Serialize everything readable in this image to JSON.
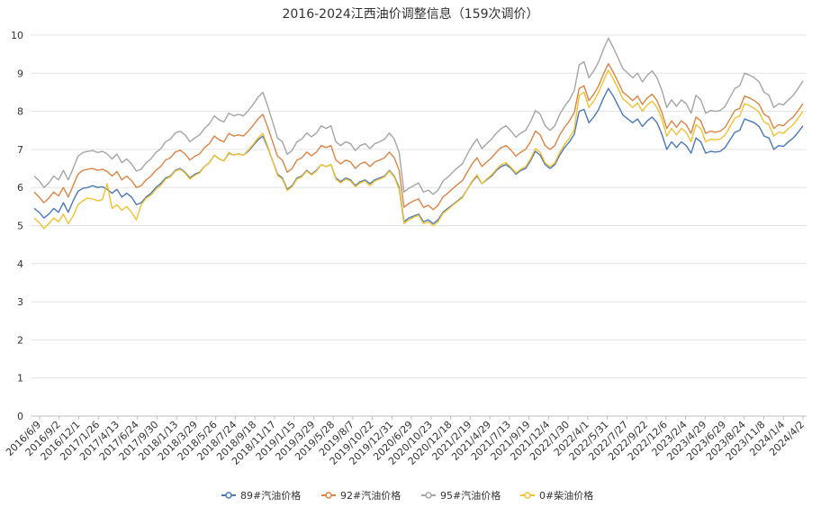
{
  "chart_data": {
    "type": "line",
    "title": "2016-2024江西油价调整信息（159次调价）",
    "xlabel": "",
    "ylabel": "",
    "ylim": [
      0,
      10
    ],
    "yticks": [
      0,
      1,
      2,
      3,
      4,
      5,
      6,
      7,
      8,
      9,
      10
    ],
    "grid": "horizontal",
    "legend_position": "bottom",
    "x_tick_labels": [
      "2016/6/9",
      "2016/9/2",
      "2016/12/1",
      "2017/1/26",
      "2017/4/13",
      "2017/6/24",
      "2017/9/30",
      "2018/1/13",
      "2018/3/29",
      "2018/5/26",
      "2018/7/24",
      "2018/9/18",
      "2018/11/17",
      "2019/1/15",
      "2019/3/29",
      "2019/5/28",
      "2019/8/7",
      "2019/10/22",
      "2019/12/31",
      "2020/6/29",
      "2020/10/23",
      "2020/12/18",
      "2021/2/19",
      "2021/4/29",
      "2021/7/13",
      "2021/9/19",
      "2021/12/4",
      "2022/1/30",
      "2022/4/1",
      "2022/5/31",
      "2022/7/27",
      "2022/9/22",
      "2022/12/6",
      "2023/2/4",
      "2023/4/29",
      "2023/6/29",
      "2023/8/24",
      "2023/11/8",
      "2024/1/4",
      "2024/4/2"
    ],
    "series": [
      {
        "name": "89#汽油价格",
        "color": "#4a79b8",
        "values": [
          5.45,
          5.35,
          5.2,
          5.3,
          5.45,
          5.35,
          5.6,
          5.35,
          5.65,
          5.9,
          5.98,
          6.0,
          6.05,
          6.0,
          6.02,
          5.95,
          5.85,
          5.95,
          5.75,
          5.85,
          5.75,
          5.55,
          5.6,
          5.75,
          5.85,
          6.0,
          6.1,
          6.25,
          6.3,
          6.45,
          6.5,
          6.4,
          6.25,
          6.35,
          6.4,
          6.55,
          6.65,
          6.85,
          6.75,
          6.7,
          6.9,
          6.85,
          6.88,
          6.85,
          6.95,
          7.1,
          7.25,
          7.35,
          7.05,
          6.7,
          6.35,
          6.25,
          5.95,
          6.05,
          6.25,
          6.3,
          6.45,
          6.35,
          6.45,
          6.6,
          6.55,
          6.6,
          6.25,
          6.15,
          6.25,
          6.2,
          6.05,
          6.15,
          6.2,
          6.1,
          6.2,
          6.25,
          6.3,
          6.45,
          6.3,
          6.0,
          5.1,
          5.2,
          5.25,
          5.3,
          5.1,
          5.15,
          5.05,
          5.15,
          5.35,
          5.45,
          5.55,
          5.65,
          5.75,
          5.95,
          6.15,
          6.3,
          6.1,
          6.2,
          6.3,
          6.45,
          6.55,
          6.6,
          6.5,
          6.35,
          6.45,
          6.5,
          6.7,
          6.95,
          6.85,
          6.6,
          6.5,
          6.6,
          6.85,
          7.05,
          7.2,
          7.4,
          8.0,
          8.05,
          7.7,
          7.85,
          8.05,
          8.35,
          8.6,
          8.4,
          8.15,
          7.9,
          7.8,
          7.7,
          7.8,
          7.6,
          7.75,
          7.85,
          7.7,
          7.4,
          7.0,
          7.2,
          7.05,
          7.2,
          7.1,
          6.9,
          7.3,
          7.2,
          6.9,
          6.95,
          6.93,
          6.95,
          7.05,
          7.25,
          7.45,
          7.5,
          7.8,
          7.75,
          7.7,
          7.6,
          7.35,
          7.3,
          7.0,
          7.1,
          7.08,
          7.2,
          7.3,
          7.45,
          7.62
        ]
      },
      {
        "name": "92#汽油价格",
        "color": "#dd8445",
        "values": [
          5.88,
          5.75,
          5.6,
          5.72,
          5.88,
          5.78,
          6.0,
          5.75,
          6.05,
          6.35,
          6.45,
          6.48,
          6.5,
          6.45,
          6.48,
          6.42,
          6.3,
          6.42,
          6.2,
          6.3,
          6.18,
          6.0,
          6.05,
          6.2,
          6.3,
          6.45,
          6.55,
          6.72,
          6.78,
          6.93,
          6.98,
          6.88,
          6.72,
          6.82,
          6.88,
          7.05,
          7.15,
          7.35,
          7.25,
          7.2,
          7.42,
          7.35,
          7.38,
          7.35,
          7.48,
          7.63,
          7.8,
          7.92,
          7.58,
          7.2,
          6.82,
          6.72,
          6.4,
          6.5,
          6.72,
          6.78,
          6.93,
          6.83,
          6.93,
          7.1,
          7.05,
          7.1,
          6.72,
          6.62,
          6.72,
          6.67,
          6.5,
          6.62,
          6.67,
          6.55,
          6.67,
          6.72,
          6.78,
          6.93,
          6.78,
          6.45,
          5.48,
          5.58,
          5.65,
          5.7,
          5.48,
          5.53,
          5.42,
          5.53,
          5.75,
          5.85,
          5.97,
          6.08,
          6.18,
          6.4,
          6.62,
          6.78,
          6.55,
          6.67,
          6.78,
          6.93,
          7.05,
          7.1,
          6.98,
          6.82,
          6.93,
          7.0,
          7.2,
          7.48,
          7.38,
          7.1,
          7.0,
          7.1,
          7.38,
          7.58,
          7.75,
          7.97,
          8.6,
          8.67,
          8.28,
          8.45,
          8.67,
          8.98,
          9.25,
          9.03,
          8.77,
          8.5,
          8.4,
          8.28,
          8.4,
          8.18,
          8.35,
          8.45,
          8.28,
          7.97,
          7.55,
          7.75,
          7.58,
          7.75,
          7.65,
          7.42,
          7.85,
          7.75,
          7.42,
          7.48,
          7.45,
          7.48,
          7.58,
          7.8,
          8.02,
          8.08,
          8.4,
          8.35,
          8.28,
          8.18,
          7.92,
          7.85,
          7.55,
          7.65,
          7.62,
          7.75,
          7.85,
          8.02,
          8.2
        ]
      },
      {
        "name": "95#汽油价格",
        "color": "#a5a5a5",
        "values": [
          6.3,
          6.18,
          6.0,
          6.12,
          6.3,
          6.2,
          6.45,
          6.2,
          6.5,
          6.82,
          6.92,
          6.95,
          6.97,
          6.92,
          6.95,
          6.88,
          6.75,
          6.88,
          6.65,
          6.75,
          6.62,
          6.43,
          6.48,
          6.65,
          6.75,
          6.92,
          7.02,
          7.2,
          7.27,
          7.43,
          7.48,
          7.38,
          7.2,
          7.3,
          7.38,
          7.55,
          7.67,
          7.88,
          7.78,
          7.72,
          7.95,
          7.88,
          7.92,
          7.88,
          8.02,
          8.18,
          8.37,
          8.5,
          8.13,
          7.72,
          7.3,
          7.2,
          6.87,
          6.97,
          7.2,
          7.27,
          7.43,
          7.33,
          7.43,
          7.62,
          7.55,
          7.62,
          7.2,
          7.1,
          7.2,
          7.15,
          6.97,
          7.1,
          7.15,
          7.02,
          7.15,
          7.2,
          7.27,
          7.43,
          7.27,
          6.92,
          5.88,
          5.98,
          6.05,
          6.12,
          5.88,
          5.93,
          5.82,
          5.93,
          6.17,
          6.27,
          6.4,
          6.52,
          6.62,
          6.87,
          7.1,
          7.27,
          7.02,
          7.15,
          7.27,
          7.43,
          7.55,
          7.62,
          7.48,
          7.32,
          7.43,
          7.5,
          7.72,
          8.02,
          7.92,
          7.62,
          7.5,
          7.62,
          7.92,
          8.13,
          8.3,
          8.55,
          9.22,
          9.3,
          8.88,
          9.06,
          9.3,
          9.63,
          9.92,
          9.68,
          9.4,
          9.12,
          9.0,
          8.88,
          9.0,
          8.77,
          8.95,
          9.06,
          8.88,
          8.55,
          8.1,
          8.3,
          8.13,
          8.3,
          8.2,
          7.95,
          8.42,
          8.3,
          7.95,
          8.02,
          8.0,
          8.02,
          8.13,
          8.37,
          8.6,
          8.67,
          9.0,
          8.95,
          8.88,
          8.77,
          8.5,
          8.42,
          8.1,
          8.2,
          8.17,
          8.3,
          8.42,
          8.6,
          8.8
        ]
      },
      {
        "name": "0#柴油价格",
        "color": "#f2c12e",
        "values": [
          5.2,
          5.08,
          4.92,
          5.05,
          5.2,
          5.1,
          5.3,
          5.05,
          5.25,
          5.55,
          5.65,
          5.72,
          5.7,
          5.65,
          5.68,
          6.1,
          5.45,
          5.55,
          5.4,
          5.5,
          5.35,
          5.15,
          5.55,
          5.72,
          5.8,
          5.95,
          6.05,
          6.22,
          6.28,
          6.43,
          6.48,
          6.38,
          6.22,
          6.32,
          6.38,
          6.55,
          6.65,
          6.85,
          6.75,
          6.7,
          6.92,
          6.85,
          6.88,
          6.85,
          6.98,
          7.13,
          7.3,
          7.42,
          7.08,
          6.7,
          6.32,
          6.22,
          5.92,
          6.02,
          6.22,
          6.28,
          6.43,
          6.33,
          6.43,
          6.6,
          6.55,
          6.6,
          6.22,
          6.12,
          6.22,
          6.17,
          6.02,
          6.12,
          6.17,
          6.05,
          6.17,
          6.22,
          6.28,
          6.43,
          6.28,
          5.95,
          5.05,
          5.15,
          5.22,
          5.27,
          5.05,
          5.1,
          5.0,
          5.1,
          5.32,
          5.42,
          5.53,
          5.63,
          5.73,
          5.95,
          6.17,
          6.33,
          6.1,
          6.22,
          6.33,
          6.48,
          6.6,
          6.65,
          6.53,
          6.38,
          6.48,
          6.55,
          6.75,
          7.02,
          6.92,
          6.65,
          6.55,
          6.65,
          6.92,
          7.13,
          7.3,
          7.52,
          8.42,
          8.5,
          8.1,
          8.27,
          8.5,
          8.8,
          9.08,
          8.85,
          8.6,
          8.33,
          8.22,
          8.1,
          8.22,
          8.0,
          8.17,
          8.27,
          8.1,
          7.8,
          7.35,
          7.55,
          7.38,
          7.55,
          7.45,
          7.2,
          7.65,
          7.55,
          7.2,
          7.27,
          7.25,
          7.27,
          7.38,
          7.6,
          7.82,
          7.88,
          8.2,
          8.15,
          8.08,
          7.97,
          7.72,
          7.65,
          7.35,
          7.45,
          7.42,
          7.55,
          7.65,
          7.82,
          8.0
        ]
      }
    ]
  }
}
